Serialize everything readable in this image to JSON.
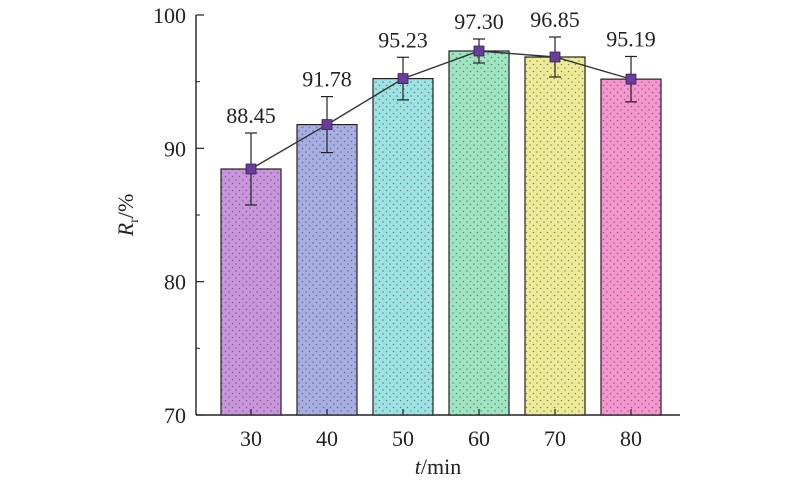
{
  "chart_data": {
    "type": "bar",
    "categories": [
      "30",
      "40",
      "50",
      "60",
      "70",
      "80"
    ],
    "values": [
      88.45,
      91.78,
      95.23,
      97.3,
      96.85,
      95.19
    ],
    "value_labels": [
      "88.45",
      "91.78",
      "95.23",
      "97.30",
      "96.85",
      "95.19"
    ],
    "error": [
      2.7,
      2.1,
      1.6,
      0.9,
      1.5,
      1.7
    ],
    "overlay_line": true,
    "ylim": [
      70,
      100
    ],
    "yticks": [
      "70",
      "80",
      "90",
      "100"
    ],
    "xlabel": {
      "italic": "t",
      "rest": "/min"
    },
    "ylabel": {
      "italic": "R",
      "sub": "r",
      "rest": "/%"
    },
    "bar_colors": [
      "#c996de",
      "#a7aee3",
      "#9ee3e3",
      "#9fe5c2",
      "#eeeb96",
      "#f596d0"
    ],
    "marker_color": "#6a3d9a",
    "grid": false
  }
}
